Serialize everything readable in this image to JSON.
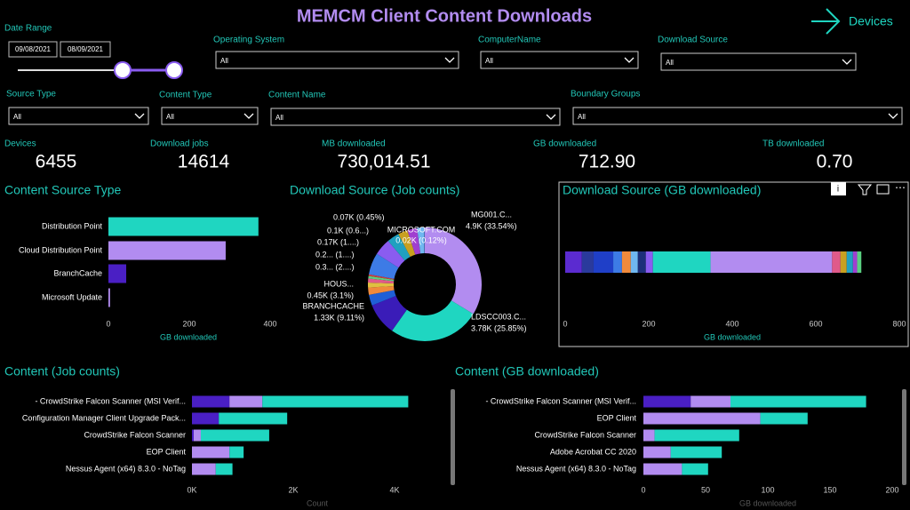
{
  "header": {
    "title": "MEMCM Client Content Downloads",
    "nav": "Devices"
  },
  "filters": {
    "date_range": {
      "label": "Date Range",
      "start": "09/08/2021",
      "end": "08/09/2021"
    },
    "dropdowns": [
      {
        "label": "Operating System",
        "value": "All"
      },
      {
        "label": "ComputerName",
        "value": "All"
      },
      {
        "label": "Download Source",
        "value": "All"
      },
      {
        "label": "Source Type",
        "value": "All"
      },
      {
        "label": "Content Type",
        "value": "All"
      },
      {
        "label": "Content Name",
        "value": "All"
      },
      {
        "label": "Boundary Groups",
        "value": "All"
      }
    ]
  },
  "kpis": [
    {
      "label": "Devices",
      "value": "6455"
    },
    {
      "label": "Download jobs",
      "value": "14614"
    },
    {
      "label": "MB downloaded",
      "value": "730,014.51"
    },
    {
      "label": "GB downloaded",
      "value": "712.90"
    },
    {
      "label": "TB downloaded",
      "value": "0.70"
    }
  ],
  "chart_data": [
    {
      "type": "hbar",
      "title": "Content Source Type",
      "categories": [
        "Distribution Point",
        "Cloud Distribution Point",
        "BranchCache",
        "Microsoft Update"
      ],
      "values": [
        371,
        290,
        44,
        4
      ],
      "colors": [
        "#1fd6c1",
        "#b28cf0",
        "#4a1fc4",
        "#b28cf0"
      ],
      "xlim": [
        0,
        400
      ],
      "xticks": [
        0,
        200,
        400
      ],
      "x_label": "GB downloaded"
    },
    {
      "type": "donut",
      "title": "Download Source (Job counts)",
      "categories": [
        "MG001.C...",
        "LDSCC003.C...",
        "BRANCHCACHE",
        "HOUS...",
        null,
        null,
        null,
        null,
        null,
        null,
        null,
        null,
        null,
        null,
        null,
        "MICROSOFT.COM"
      ],
      "values": [
        4900,
        3780,
        1330,
        450,
        300,
        200,
        170,
        100,
        70,
        900,
        700,
        500,
        400,
        400,
        300,
        20
      ],
      "value_labels": [
        "4.9K (33.54%)",
        "3.78K (25.85%)",
        "1.33K (9.11%)",
        "0.45K (3.1%)",
        "0.3... (2....)",
        "0.2... (1....)",
        "0.17K (1....)",
        "0.1K (0.6...)",
        "0.07K (0.45%)",
        null,
        null,
        null,
        null,
        null,
        null,
        "0.02K (0.12%)"
      ],
      "colors": [
        "#b28cf0",
        "#1fd6c1",
        "#3a1cb8",
        "#1f5fd6",
        "#f08a3c",
        "#e0c040",
        "#e05a8a",
        "#5ad080",
        "#d04040",
        "#3d7be6",
        "#8a5cf0",
        "#20a0c0",
        "#c8a020",
        "#a03fd0",
        "#6fb7f0",
        "#1d2f7a"
      ]
    },
    {
      "type": "stacked-hbar",
      "title": "Download Source (GB downloaded)",
      "categories": [
        null
      ],
      "series": [
        {
          "color": "#5b2bd0",
          "values": [
            40
          ]
        },
        {
          "color": "#2a3a9c",
          "values": [
            28
          ]
        },
        {
          "color": "#1f3fc8",
          "values": [
            47
          ]
        },
        {
          "color": "#3d7be6",
          "values": [
            21
          ]
        },
        {
          "color": "#f08a3c",
          "values": [
            21
          ]
        },
        {
          "color": "#6fb7f0",
          "values": [
            17
          ]
        },
        {
          "color": "#1d2f7a",
          "values": [
            19
          ]
        },
        {
          "color": "#8a5cf0",
          "values": [
            17
          ]
        },
        {
          "color": "#1fd6c1",
          "values": [
            138
          ]
        },
        {
          "color": "#b28cf0",
          "values": [
            291
          ]
        },
        {
          "color": "#e05a8a",
          "values": [
            20
          ]
        },
        {
          "color": "#c8a020",
          "values": [
            15
          ]
        },
        {
          "color": "#20a0c0",
          "values": [
            15
          ]
        },
        {
          "color": "#a03fd0",
          "values": [
            10
          ]
        },
        {
          "color": "#5ad080",
          "values": [
            10
          ]
        }
      ],
      "xlim": [
        0,
        800
      ],
      "xticks": [
        0,
        200,
        400,
        600,
        800
      ],
      "x_label": "GB downloaded"
    },
    {
      "type": "stacked-hbar",
      "title": "Content (Job counts)",
      "categories": [
        "- CrowdStrike Falcon Scanner (MSI Verif...",
        "Configuration Manager Client Upgrade Pack...",
        "CrowdStrike Falcon Scanner",
        "EOP Client",
        "Nessus Agent (x64) 8.3.0 - NoTag"
      ],
      "series": [
        {
          "color": "#4a1fc4",
          "values": [
            740,
            530,
            35,
            0,
            0
          ]
        },
        {
          "color": "#b28cf0",
          "values": [
            650,
            0,
            140,
            740,
            470
          ]
        },
        {
          "color": "#1fd6c1",
          "values": [
            2880,
            1350,
            1350,
            280,
            330
          ]
        }
      ],
      "xlim": [
        0,
        4500
      ],
      "xticks": [
        {
          "value": 0,
          "label": "0K"
        },
        {
          "value": 2000,
          "label": "2K"
        },
        {
          "value": 4000,
          "label": "4K"
        }
      ],
      "x_label": "Count"
    },
    {
      "type": "stacked-hbar",
      "title": "Content (GB downloaded)",
      "categories": [
        "- CrowdStrike Falcon Scanner (MSI Verif...",
        "EOP Client",
        "CrowdStrike Falcon Scanner",
        "Adobe Acrobat CC 2020",
        "Nessus Agent (x64) 8.3.0 - NoTag"
      ],
      "series": [
        {
          "color": "#4a1fc4",
          "values": [
            38,
            0,
            0,
            0,
            0
          ]
        },
        {
          "color": "#b28cf0",
          "values": [
            32,
            94,
            9,
            22,
            31
          ]
        },
        {
          "color": "#1fd6c1",
          "values": [
            109,
            38,
            68,
            41,
            21
          ]
        }
      ],
      "xlim": [
        0,
        200
      ],
      "xticks": [
        0,
        50,
        100,
        150,
        200
      ],
      "x_label": "GB downloaded"
    }
  ]
}
